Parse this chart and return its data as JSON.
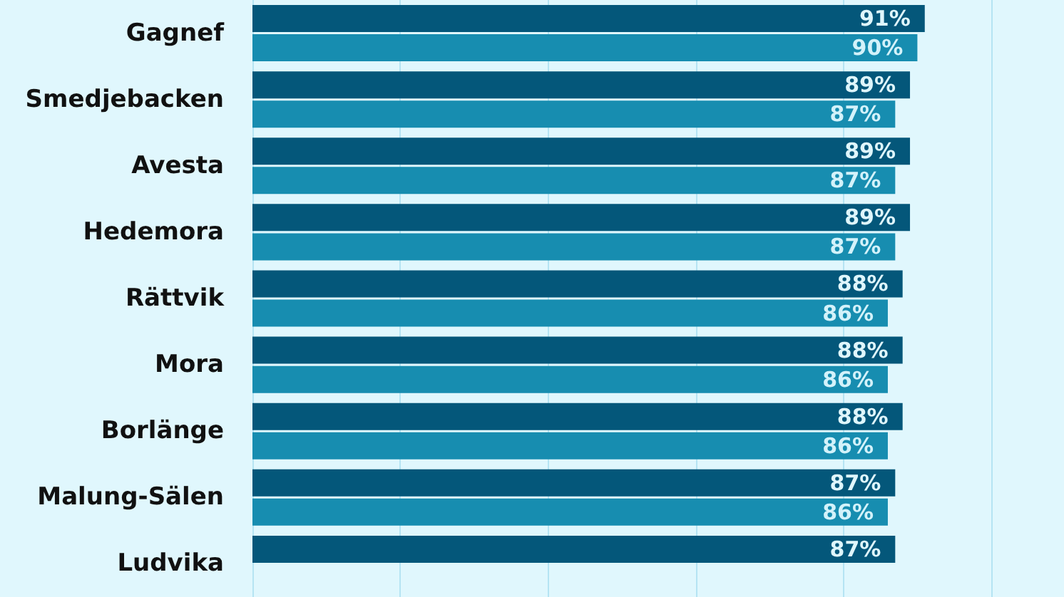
{
  "chart_data": {
    "type": "bar",
    "orientation": "horizontal",
    "categories": [
      "Gagnef",
      "Smedjebacken",
      "Avesta",
      "Hedemora",
      "Rättvik",
      "Mora",
      "Borlänge",
      "Malung-Sälen",
      "Ludvika"
    ],
    "series": [
      {
        "color": "#04577a",
        "values": [
          91,
          89,
          89,
          89,
          88,
          88,
          88,
          87,
          87
        ],
        "value_labels": [
          "91%",
          "89%",
          "89%",
          "89%",
          "88%",
          "88%",
          "88%",
          "87%",
          "87%"
        ]
      },
      {
        "color": "#178db0",
        "values": [
          90,
          87,
          87,
          87,
          86,
          86,
          86,
          86,
          null
        ],
        "value_labels": [
          "90%",
          "87%",
          "87%",
          "87%",
          "86%",
          "86%",
          "86%",
          "86%",
          null
        ]
      }
    ],
    "xlim": [
      0,
      100
    ],
    "xticks": [
      {
        "value": 0,
        "label": null
      },
      {
        "value": 20,
        "label": null
      },
      {
        "value": 40,
        "label": null
      },
      {
        "value": 60,
        "label": null
      },
      {
        "value": 80,
        "label": null
      },
      {
        "value": 100,
        "label": null
      }
    ],
    "tick_labels": "y",
    "grid": "x"
  }
}
